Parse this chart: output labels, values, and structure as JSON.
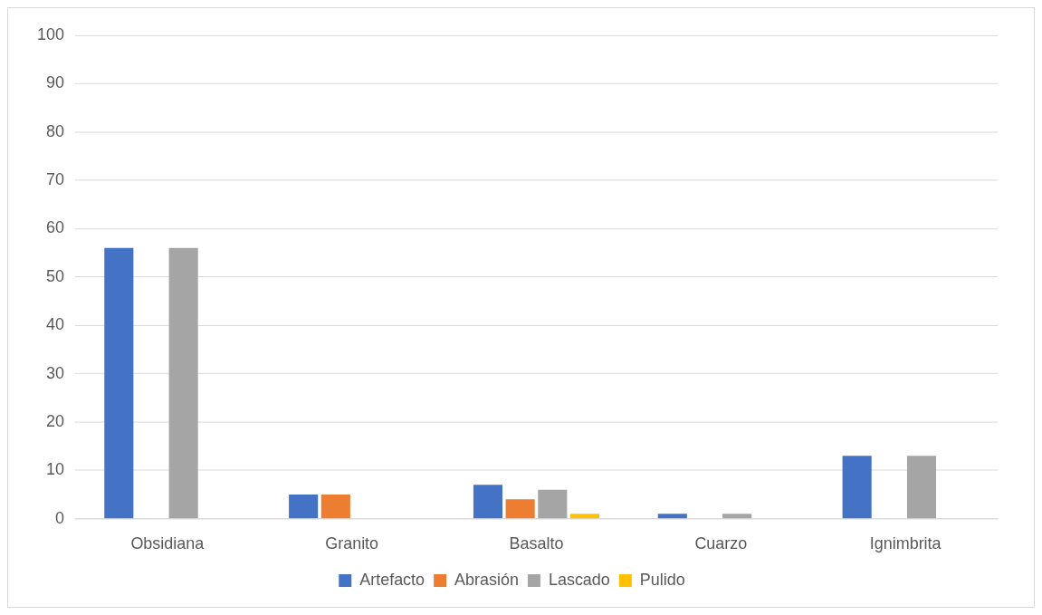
{
  "chart_data": {
    "type": "bar",
    "categories": [
      "Obsidiana",
      "Granito",
      "Basalto",
      "Cuarzo",
      "Ignimbrita"
    ],
    "series": [
      {
        "name": "Artefacto",
        "color": "#4472c4",
        "values": [
          56,
          5,
          7,
          1,
          13
        ]
      },
      {
        "name": "Abrasión",
        "color": "#ed7d31",
        "values": [
          0,
          5,
          4,
          0,
          0
        ]
      },
      {
        "name": "Lascado",
        "color": "#a5a5a5",
        "values": [
          56,
          0,
          6,
          1,
          13
        ]
      },
      {
        "name": "Pulido",
        "color": "#ffc000",
        "values": [
          0,
          0,
          1,
          0,
          0
        ]
      }
    ],
    "ylim": [
      0,
      100
    ],
    "yticks": [
      0,
      10,
      20,
      30,
      40,
      50,
      60,
      70,
      80,
      90,
      100
    ],
    "grid": "y",
    "legend": "bottom"
  }
}
